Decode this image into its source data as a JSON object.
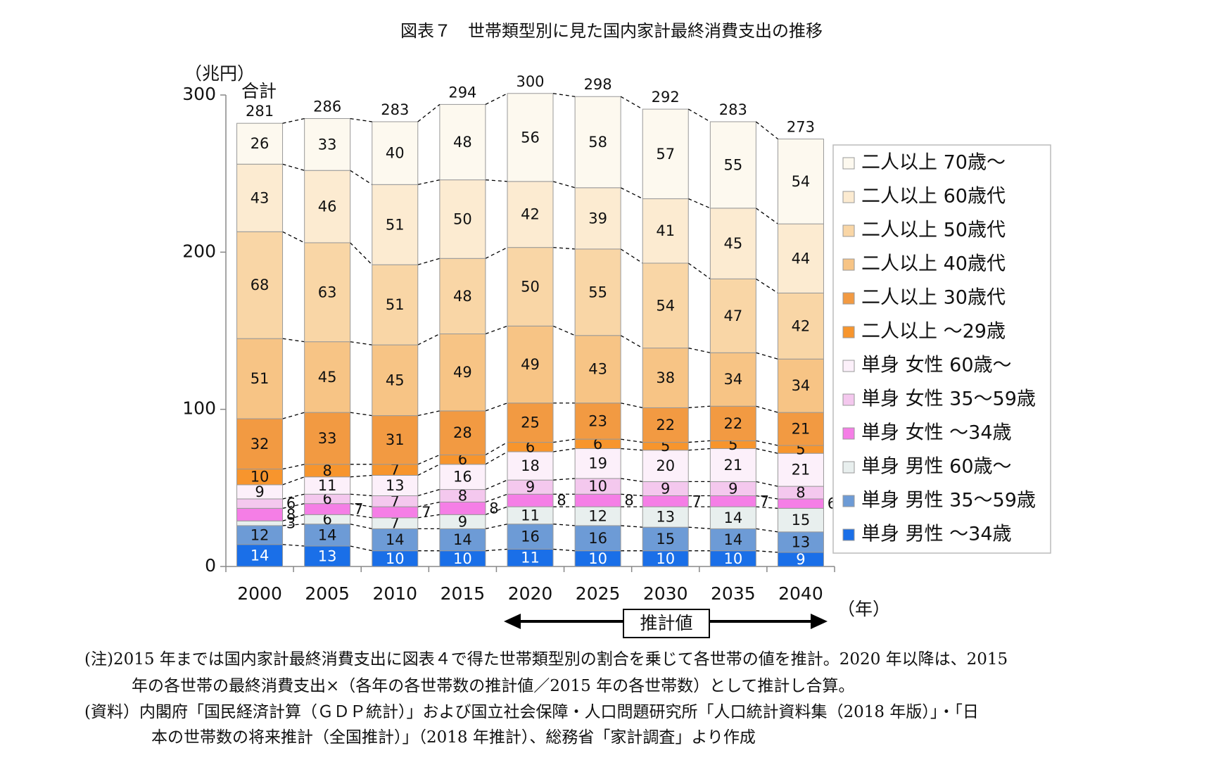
{
  "chart_data": {
    "type": "stacked_bar",
    "title": "図表７　世帯類型別に見た国内家計最終消費支出の推移",
    "y_label": "（兆円）",
    "x_label": "（年）",
    "total_label": "合計",
    "annotation": "推計値",
    "categories": [
      "2000",
      "2005",
      "2010",
      "2015",
      "2020",
      "2025",
      "2030",
      "2035",
      "2040"
    ],
    "totals": [
      281,
      286,
      283,
      294,
      300,
      298,
      292,
      283,
      273
    ],
    "ylim": [
      0,
      300
    ],
    "yticks": [
      0,
      100,
      200,
      300
    ],
    "grid": false,
    "legend": "right",
    "series": [
      {
        "name": "単身 男性 ～34歳",
        "color": "#1a6fe8",
        "values": [
          14,
          13,
          10,
          10,
          11,
          10,
          10,
          10,
          9
        ]
      },
      {
        "name": "単身 男性 35～59歳",
        "color": "#6d9bd6",
        "values": [
          12,
          14,
          14,
          14,
          16,
          16,
          15,
          14,
          13
        ]
      },
      {
        "name": "単身 男性 60歳～",
        "color": "#e8efee",
        "values": [
          3,
          6,
          7,
          9,
          11,
          12,
          13,
          14,
          15
        ]
      },
      {
        "name": "単身 女性 ～34歳",
        "color": "#f57ee6",
        "values": [
          8,
          7,
          7,
          8,
          8,
          8,
          7,
          7,
          6
        ]
      },
      {
        "name": "単身 女性 35～59歳",
        "color": "#f4c8ee",
        "values": [
          6,
          6,
          7,
          8,
          9,
          10,
          9,
          9,
          8
        ]
      },
      {
        "name": "単身 女性 60歳～",
        "color": "#fcf0fa",
        "values": [
          9,
          11,
          13,
          16,
          18,
          19,
          20,
          21,
          21
        ]
      },
      {
        "name": "二人以上 ～29歳",
        "color": "#f7952d",
        "values": [
          10,
          8,
          7,
          6,
          6,
          6,
          5,
          5,
          5
        ]
      },
      {
        "name": "二人以上 30歳代",
        "color": "#f29a42",
        "values": [
          32,
          33,
          31,
          28,
          25,
          23,
          22,
          22,
          21
        ]
      },
      {
        "name": "二人以上 40歳代",
        "color": "#f7c485",
        "values": [
          51,
          45,
          45,
          49,
          49,
          43,
          38,
          34,
          34
        ]
      },
      {
        "name": "二人以上 50歳代",
        "color": "#f9d6a6",
        "values": [
          68,
          63,
          51,
          48,
          50,
          55,
          54,
          47,
          42
        ]
      },
      {
        "name": "二人以上 60歳代",
        "color": "#fcebd1",
        "values": [
          43,
          46,
          51,
          50,
          42,
          39,
          41,
          45,
          44
        ]
      },
      {
        "name": "二人以上 70歳～",
        "color": "#fdf9ef",
        "values": [
          26,
          33,
          40,
          48,
          56,
          58,
          57,
          55,
          54
        ]
      }
    ],
    "notes": [
      "(注)2015 年までは国内家計最終消費支出に図表４で得た世帯類型別の割合を乗じて各世帯の値を推計。2020 年以降は、2015",
      "年の各世帯の最終消費支出×（各年の各世帯数の推計値／2015 年の各世帯数）として推計し合算。",
      "(資料）内閣府「国民経済計算（ＧＤＰ統計）」および国立社会保障・人口問題研究所「人口統計資料集（2018 年版）」・「日",
      "本の世帯数の将来推計（全国推計）」（2018 年推計）、総務省「家計調査」より作成"
    ]
  }
}
